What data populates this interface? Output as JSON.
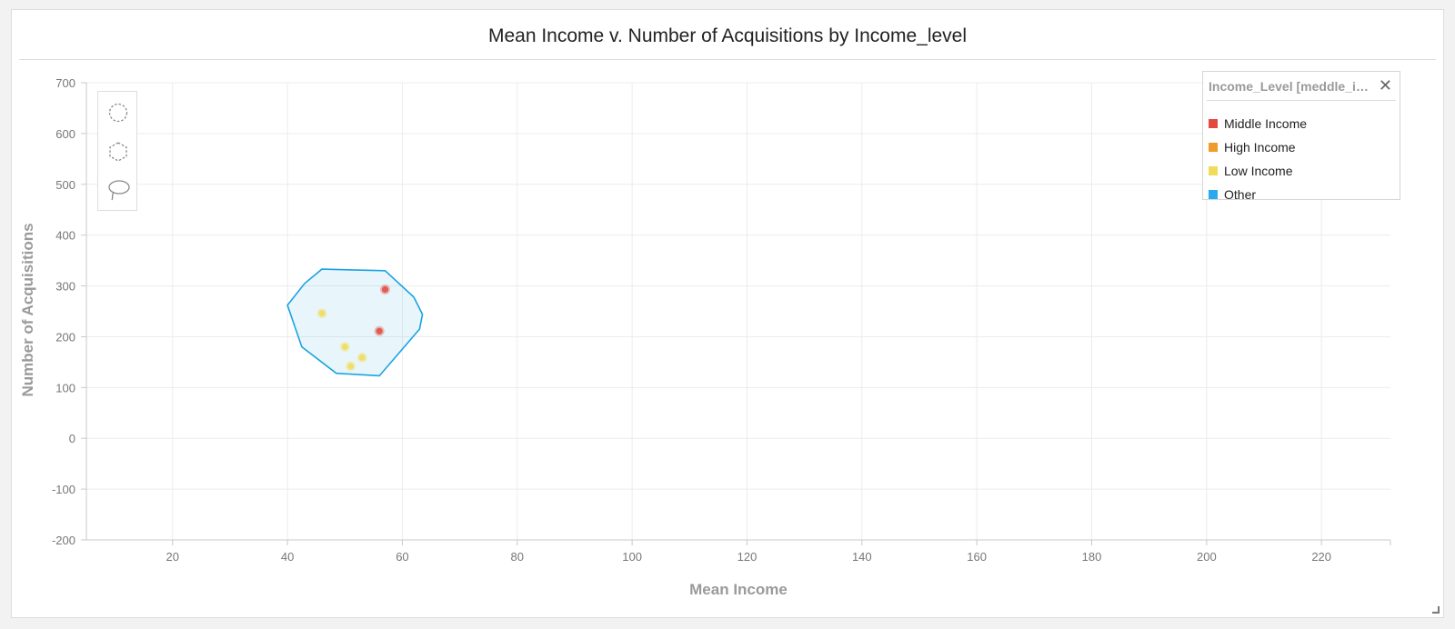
{
  "colors": {
    "middle_income": "#e34a3f",
    "high_income": "#ef9a2b",
    "low_income": "#f0dc5a",
    "other": "#2aa9ee",
    "selection": "#1aa3e0"
  },
  "chart_data": {
    "type": "scatter",
    "title": "Mean Income v. Number of Acquisitions by Income_level",
    "xlabel": "Mean Income",
    "ylabel": "Number of Acquisitions",
    "xlim": [
      5,
      232
    ],
    "ylim": [
      -200,
      700
    ],
    "x_ticks": [
      20,
      40,
      60,
      80,
      100,
      120,
      140,
      160,
      180,
      200,
      220
    ],
    "y_ticks": [
      -200,
      -100,
      0,
      100,
      200,
      300,
      400,
      500,
      600,
      700
    ],
    "grid": true,
    "legend_position": "top-right",
    "series": [
      {
        "name": "Middle Income",
        "color_key": "middle_income",
        "points": [
          [
            57,
            293
          ],
          [
            56,
            211
          ]
        ]
      },
      {
        "name": "High Income",
        "color_key": "high_income",
        "points": []
      },
      {
        "name": "Low Income",
        "color_key": "low_income",
        "points": [
          [
            46,
            246
          ],
          [
            50,
            180
          ],
          [
            53,
            159
          ],
          [
            51,
            142
          ]
        ]
      },
      {
        "name": "Other",
        "color_key": "other",
        "points": []
      }
    ],
    "lasso_selection": [
      [
        40,
        262
      ],
      [
        43,
        305
      ],
      [
        46,
        333
      ],
      [
        57,
        330
      ],
      [
        62,
        278
      ],
      [
        63.5,
        244
      ],
      [
        63,
        215
      ],
      [
        56,
        123
      ],
      [
        48.5,
        128
      ],
      [
        42.5,
        180
      ],
      [
        40,
        262
      ]
    ]
  },
  "legend": {
    "title": "Income_Level [meddle_income_count]",
    "close_icon": "close-icon",
    "items": [
      {
        "label": "Middle Income",
        "color_key": "middle_income"
      },
      {
        "label": "High Income",
        "color_key": "high_income"
      },
      {
        "label": "Low Income",
        "color_key": "low_income"
      },
      {
        "label": "Other",
        "color_key": "other"
      }
    ]
  },
  "tools": [
    {
      "icon": "circle-select-icon"
    },
    {
      "icon": "polygon-select-icon"
    },
    {
      "icon": "lasso-select-icon"
    }
  ]
}
